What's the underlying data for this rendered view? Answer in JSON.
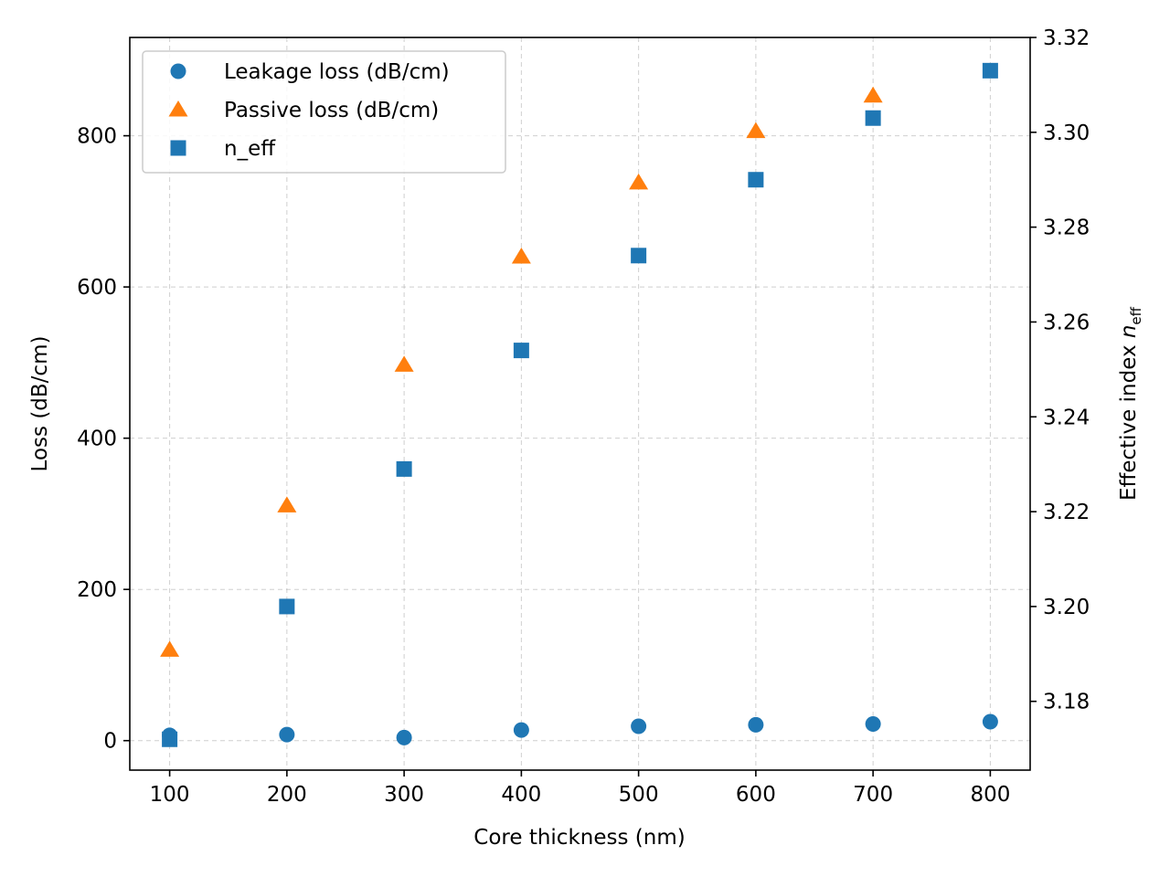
{
  "colors": {
    "leakage": "#1f77b4",
    "passive": "#ff7f0e",
    "neff": "#1f77b4",
    "grid": "#b0b0b0"
  },
  "chart_data": {
    "type": "scatter",
    "xlabel": "Core thickness (nm)",
    "ylabel": "Loss (dB/cm)",
    "y2label_main": "Effective index ",
    "y2label_symbol": "n",
    "y2label_sub": "eff",
    "x": [
      100,
      200,
      300,
      400,
      500,
      600,
      700,
      800
    ],
    "xlim": [
      66,
      834
    ],
    "ylim": [
      -39,
      930
    ],
    "y2lim": [
      3.1655,
      3.32
    ],
    "xticks": [
      100,
      200,
      300,
      400,
      500,
      600,
      700,
      800
    ],
    "yticks": [
      0,
      200,
      400,
      600,
      800
    ],
    "y2ticks": [
      3.18,
      3.2,
      3.22,
      3.24,
      3.26,
      3.28,
      3.3,
      3.32
    ],
    "grid": true,
    "legend_position": "upper-left",
    "series": [
      {
        "name": "Leakage loss (dB/cm)",
        "axis": "left",
        "marker": "circle",
        "color": "#1f77b4",
        "values": [
          7,
          8,
          4,
          14,
          19,
          21,
          22,
          25
        ]
      },
      {
        "name": "Passive loss (dB/cm)",
        "axis": "left",
        "marker": "triangle",
        "color": "#ff7f0e",
        "values": [
          120,
          311,
          497,
          640,
          738,
          806,
          853,
          null
        ]
      },
      {
        "name": "n_eff",
        "axis": "right",
        "marker": "square",
        "color": "#1f77b4",
        "values": [
          3.172,
          3.2,
          3.229,
          3.254,
          3.274,
          3.29,
          3.303,
          3.313
        ]
      }
    ]
  }
}
